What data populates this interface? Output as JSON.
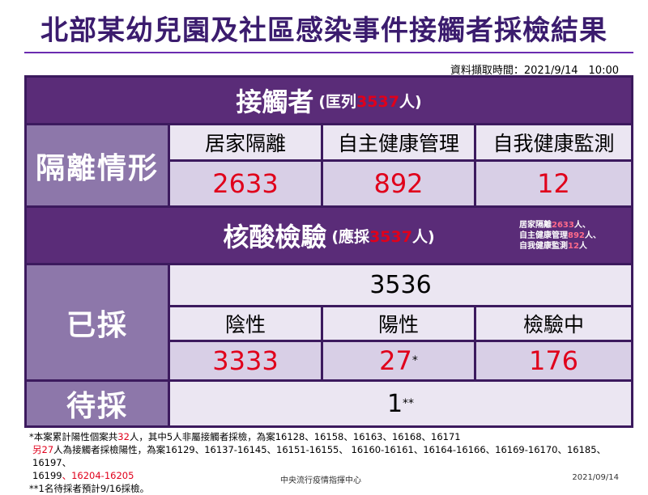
{
  "title": "北部某幼兒園及社區感染事件接觸者採檢結果",
  "timestamp": "資料擷取時間：2021/9/14　10:00",
  "contacts": {
    "label": "接觸者",
    "sub_prefix": "(匡列",
    "sub_value": "3537",
    "sub_suffix": "人)"
  },
  "isolation": {
    "side_label": "隔離情形",
    "columns": [
      "居家隔離",
      "自主健康管理",
      "自我健康監測"
    ],
    "values": [
      "2633",
      "892",
      "12"
    ]
  },
  "nucleic": {
    "label": "核酸檢驗",
    "sub_prefix": "(應採",
    "sub_value": "3537",
    "sub_suffix": "人)",
    "note": {
      "line1_a": "居家隔離",
      "line1_v": "2633",
      "line1_b": "人、",
      "line2_a": "自主健康管理",
      "line2_v": "892",
      "line2_b": "人、",
      "line3_a": "自我健康監測",
      "line3_v": "12",
      "line3_b": "人"
    }
  },
  "sampled": {
    "side_label": "已採",
    "total": "3536",
    "columns": [
      "陰性",
      "陽性",
      "檢驗中"
    ],
    "values": [
      "3333",
      "27",
      "176"
    ],
    "positive_mark": "*"
  },
  "pending": {
    "side_label": "待採",
    "value": "1",
    "mark": "**"
  },
  "footnotes": {
    "l1_a": "*本案累計陽性個案共",
    "l1_v": "32",
    "l1_b": "人，其中5人非屬接觸者採檢，為案16128、16158、16163、16168、16171",
    "l2_v": "另27",
    "l2_b": "人為接觸者採檢陽性，為案16129、16137-16145、16151-16155、 16160-16161、16164-16166、16169-16170、16185、16197、",
    "l3_a": "16199",
    "l3_v": "、16204-16205",
    "l4": "**1名待採者預計9/16採檢。"
  },
  "footer": {
    "center": "中央流行疫情指揮中心",
    "date": "2021/09/14"
  }
}
